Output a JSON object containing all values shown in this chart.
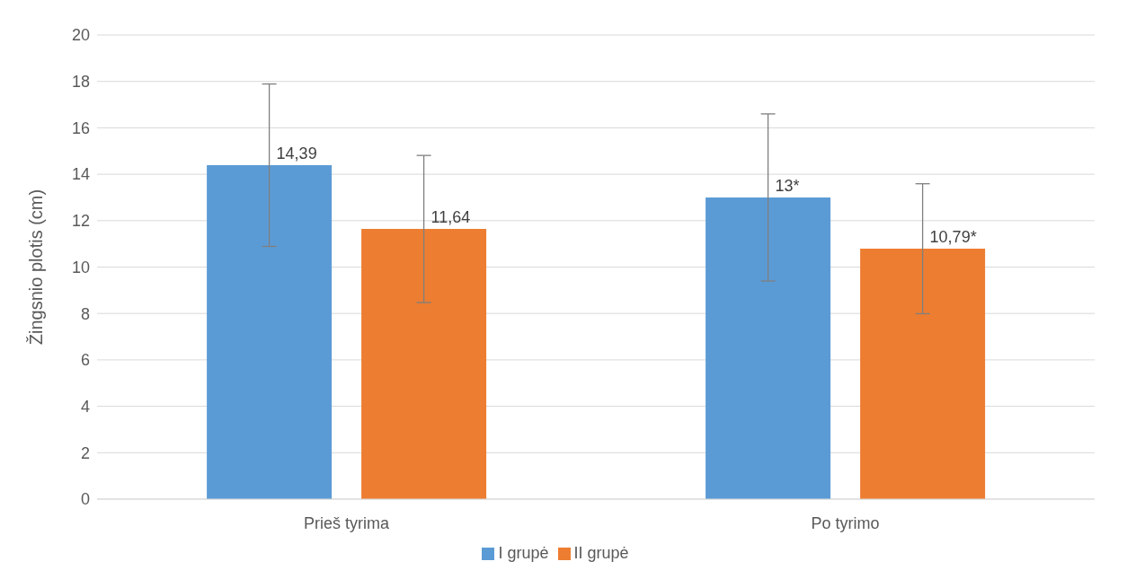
{
  "chart_data": {
    "type": "bar",
    "ylabel": "Žingsnio plotis (cm)",
    "categories": [
      "Prieš tyrima",
      "Po tyrimo"
    ],
    "series": [
      {
        "name": "I grupė",
        "color": "#5b9bd5",
        "values": [
          14.39,
          13
        ],
        "errors": [
          3.5,
          3.6
        ],
        "value_labels": [
          "14,39",
          "13*"
        ]
      },
      {
        "name": "II grupė",
        "color": "#ed7d31",
        "values": [
          11.64,
          10.79
        ],
        "errors": [
          3.17,
          2.8
        ],
        "value_labels": [
          "11,64",
          "10,79*"
        ]
      }
    ],
    "ylim": [
      0,
      20
    ],
    "yticks": [
      0,
      2,
      4,
      6,
      8,
      10,
      12,
      14,
      16,
      18,
      20
    ],
    "grid": "y",
    "legend": "bottom"
  }
}
